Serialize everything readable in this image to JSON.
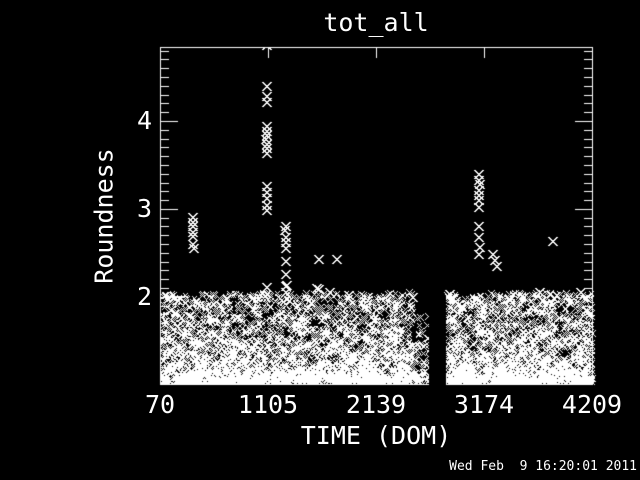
{
  "window": {
    "background": "#000000",
    "foreground": "#ffffff"
  },
  "chart_data": {
    "type": "scatter",
    "title": "tot_all",
    "xlabel": "TIME (DOM)",
    "ylabel": "Roundness",
    "timestamp": "Wed Feb  9 16:20:01 2011",
    "marker": "x",
    "marker_color": "#ffffff",
    "background_color": "#000000",
    "axes": {
      "xlim": [
        70,
        4209
      ],
      "ylim": [
        1.01,
        4.84
      ],
      "x_tick_values": [
        70,
        1104.75,
        2139.5,
        3174.25,
        4209
      ],
      "x_tick_labels": [
        "70",
        "1105",
        "2139",
        "3174",
        "4209"
      ],
      "y_tick_values": [
        2,
        3,
        4
      ],
      "y_tick_labels": [
        "2",
        "3",
        "4"
      ],
      "y_minor_step": 0.1,
      "grid": false,
      "ticks_inward": true
    },
    "outlier_points": [
      [
        378,
        2.91
      ],
      [
        378,
        2.85
      ],
      [
        378,
        2.8
      ],
      [
        379,
        2.74
      ],
      [
        378,
        2.69
      ],
      [
        378,
        2.6
      ],
      [
        382,
        2.56
      ],
      [
        1081,
        4.86
      ],
      [
        1081,
        4.4
      ],
      [
        1084,
        4.28
      ],
      [
        1081,
        4.22
      ],
      [
        1081,
        3.94
      ],
      [
        1084,
        3.89
      ],
      [
        1081,
        3.84
      ],
      [
        1078,
        3.79
      ],
      [
        1081,
        3.74
      ],
      [
        1084,
        3.69
      ],
      [
        1081,
        3.64
      ],
      [
        1081,
        3.26
      ],
      [
        1081,
        3.19
      ],
      [
        1084,
        3.12
      ],
      [
        1081,
        3.05
      ],
      [
        1081,
        2.99
      ],
      [
        1264,
        2.8
      ],
      [
        1260,
        2.76
      ],
      [
        1264,
        2.68
      ],
      [
        1264,
        2.62
      ],
      [
        1264,
        2.55
      ],
      [
        1264,
        2.41
      ],
      [
        1264,
        2.26
      ],
      [
        1268,
        2.12
      ],
      [
        1264,
        2.05
      ],
      [
        1581,
        2.43
      ],
      [
        1754,
        2.43
      ],
      [
        1581,
        2.09
      ],
      [
        3121,
        3.4
      ],
      [
        3121,
        3.33
      ],
      [
        3124,
        3.28
      ],
      [
        3121,
        3.22
      ],
      [
        3118,
        3.16
      ],
      [
        3121,
        3.1
      ],
      [
        3121,
        3.02
      ],
      [
        3121,
        2.8
      ],
      [
        3121,
        2.68
      ],
      [
        3124,
        2.57
      ],
      [
        3121,
        2.49
      ],
      [
        3255,
        2.49
      ],
      [
        3270,
        2.42
      ],
      [
        3290,
        2.35
      ],
      [
        3824,
        2.64
      ],
      [
        230,
        1.97
      ],
      [
        700,
        1.98
      ],
      [
        950,
        1.99
      ],
      [
        1081,
        2.11
      ],
      [
        1273,
        2.13
      ],
      [
        1560,
        2.1
      ],
      [
        1690,
        2.05
      ],
      [
        1870,
        2.02
      ],
      [
        2050,
        1.97
      ],
      [
        2480,
        2.0
      ],
      [
        2840,
        2.03
      ],
      [
        2865,
        1.99
      ],
      [
        2895,
        1.95
      ],
      [
        2925,
        1.92
      ],
      [
        2955,
        1.9
      ],
      [
        3400,
        1.98
      ],
      [
        3550,
        2.0
      ],
      [
        3700,
        2.05
      ],
      [
        4094,
        2.06
      ],
      [
        4150,
        1.99
      ]
    ],
    "dense_band": {
      "x_range": [
        70,
        4209
      ],
      "roundness_range": [
        1.04,
        2.05
      ],
      "n_points": 5200,
      "density_exponent": 2,
      "gap_x_range": [
        2650,
        2815
      ],
      "sparse_x_range": [
        2500,
        2650
      ],
      "sparse_keep_fraction": 0.45,
      "sparse_max_roundness": 1.8,
      "seed": 42
    }
  }
}
